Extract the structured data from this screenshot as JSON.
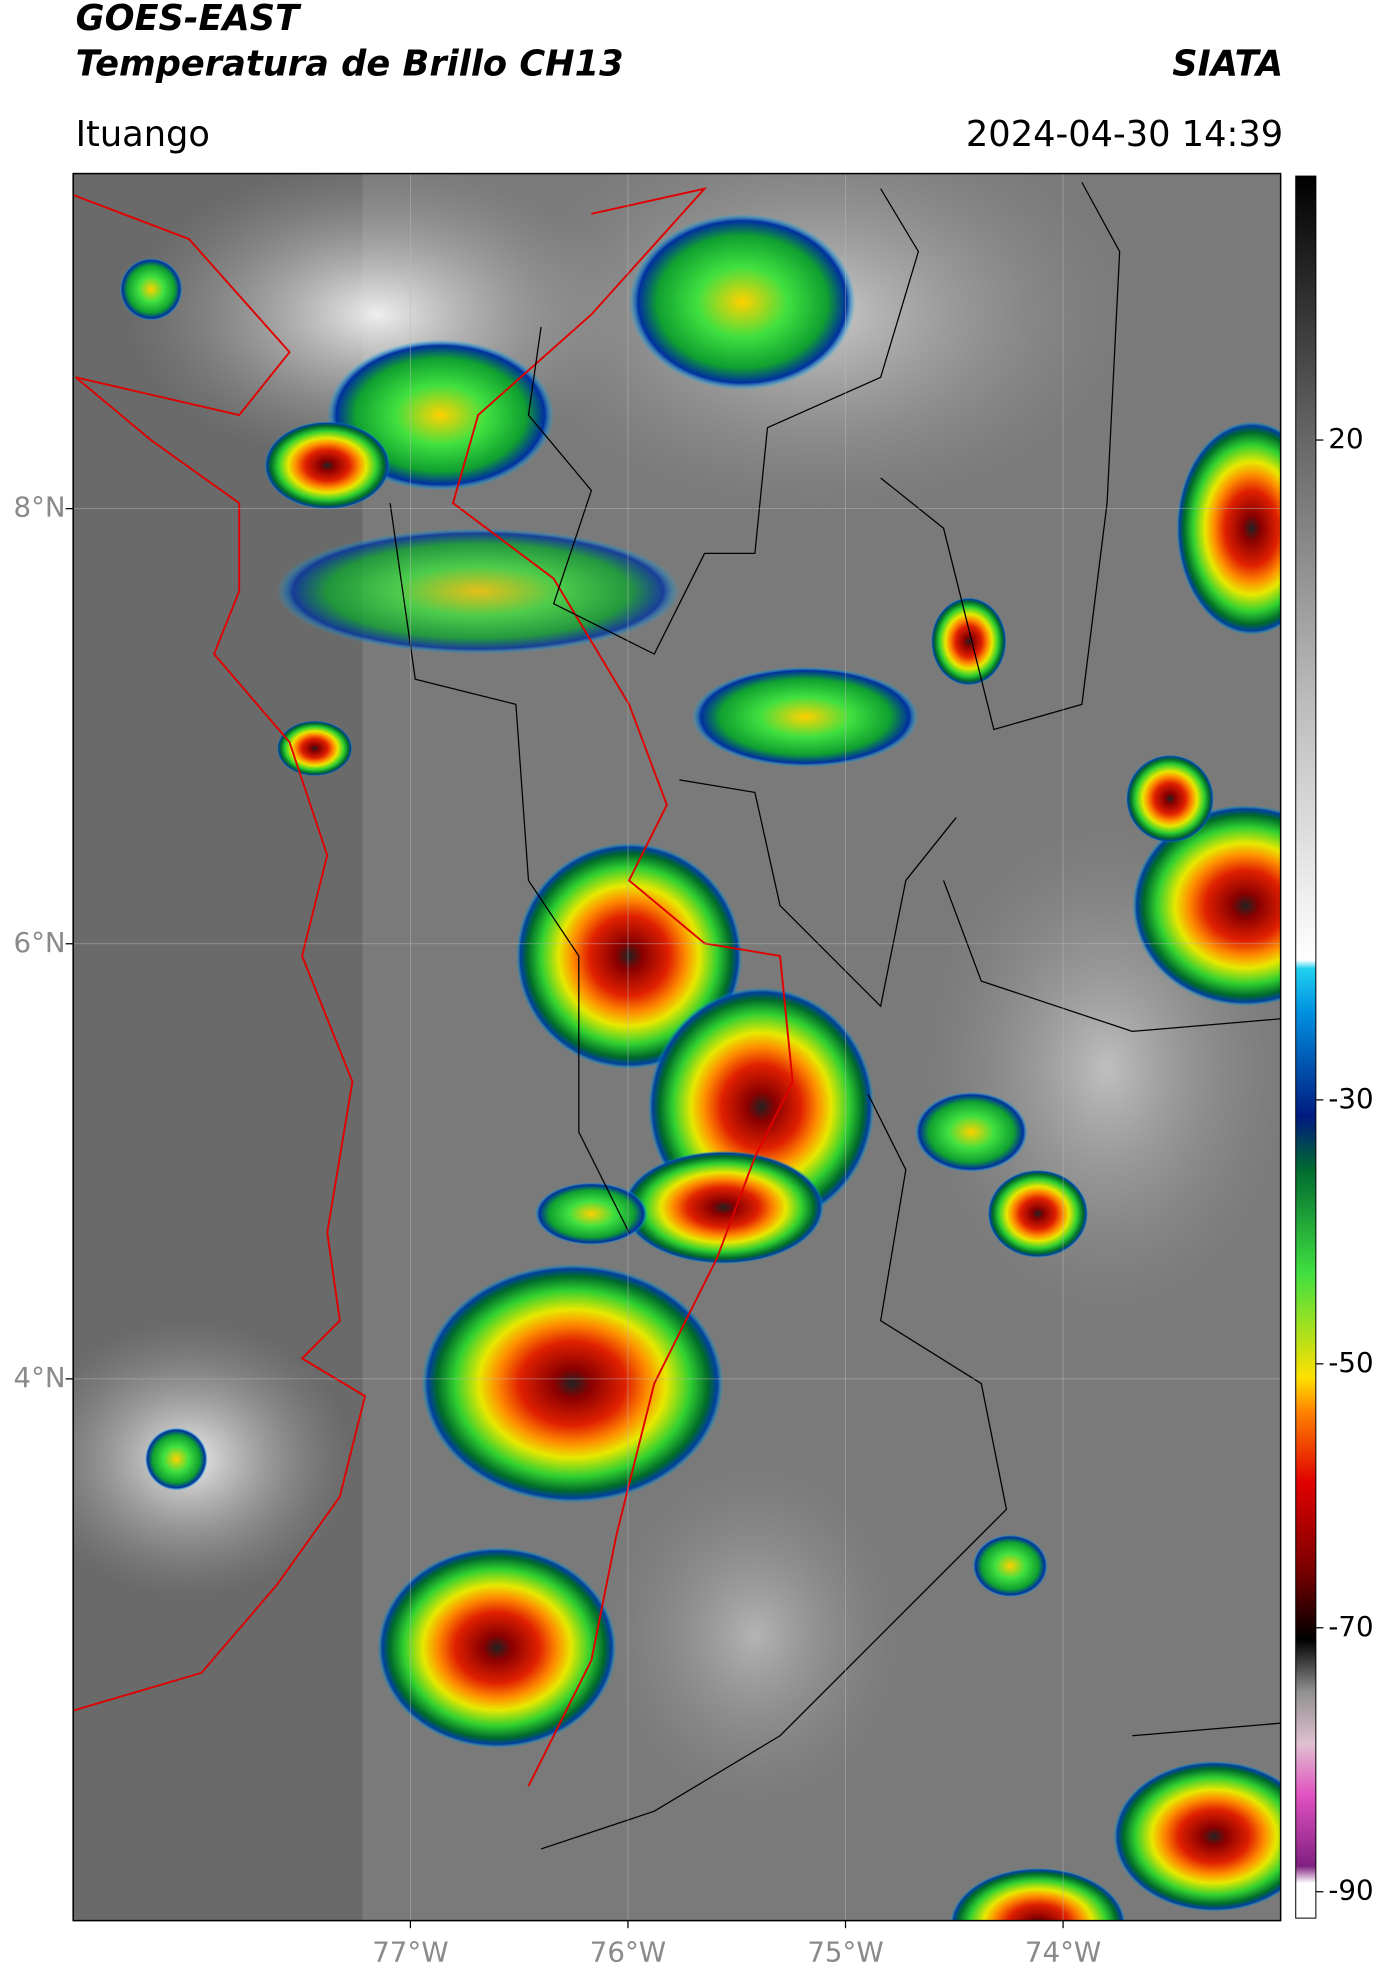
{
  "header": {
    "title": "GOES-EAST",
    "subtitle": "Temperatura de Brillo CH13",
    "source": "SIATA",
    "location": "Ituango",
    "timestamp": "2024-04-30 14:39"
  },
  "map": {
    "xlim": [
      -78.55,
      -73.0
    ],
    "ylim": [
      1.51,
      9.54
    ],
    "xticks": [
      {
        "value": -77,
        "label": "77°W"
      },
      {
        "value": -76,
        "label": "76°W"
      },
      {
        "value": -75,
        "label": "75°W"
      },
      {
        "value": -74,
        "label": "74°W"
      }
    ],
    "yticks": [
      {
        "value": 8,
        "label": "8°N"
      },
      {
        "value": 6,
        "label": "6°N"
      },
      {
        "value": 4,
        "label": "4°N"
      }
    ],
    "grid": true
  },
  "colorbar": {
    "lim": [
      -92,
      40
    ],
    "ticks": [
      20,
      -30,
      -50,
      -70,
      -90
    ]
  }
}
